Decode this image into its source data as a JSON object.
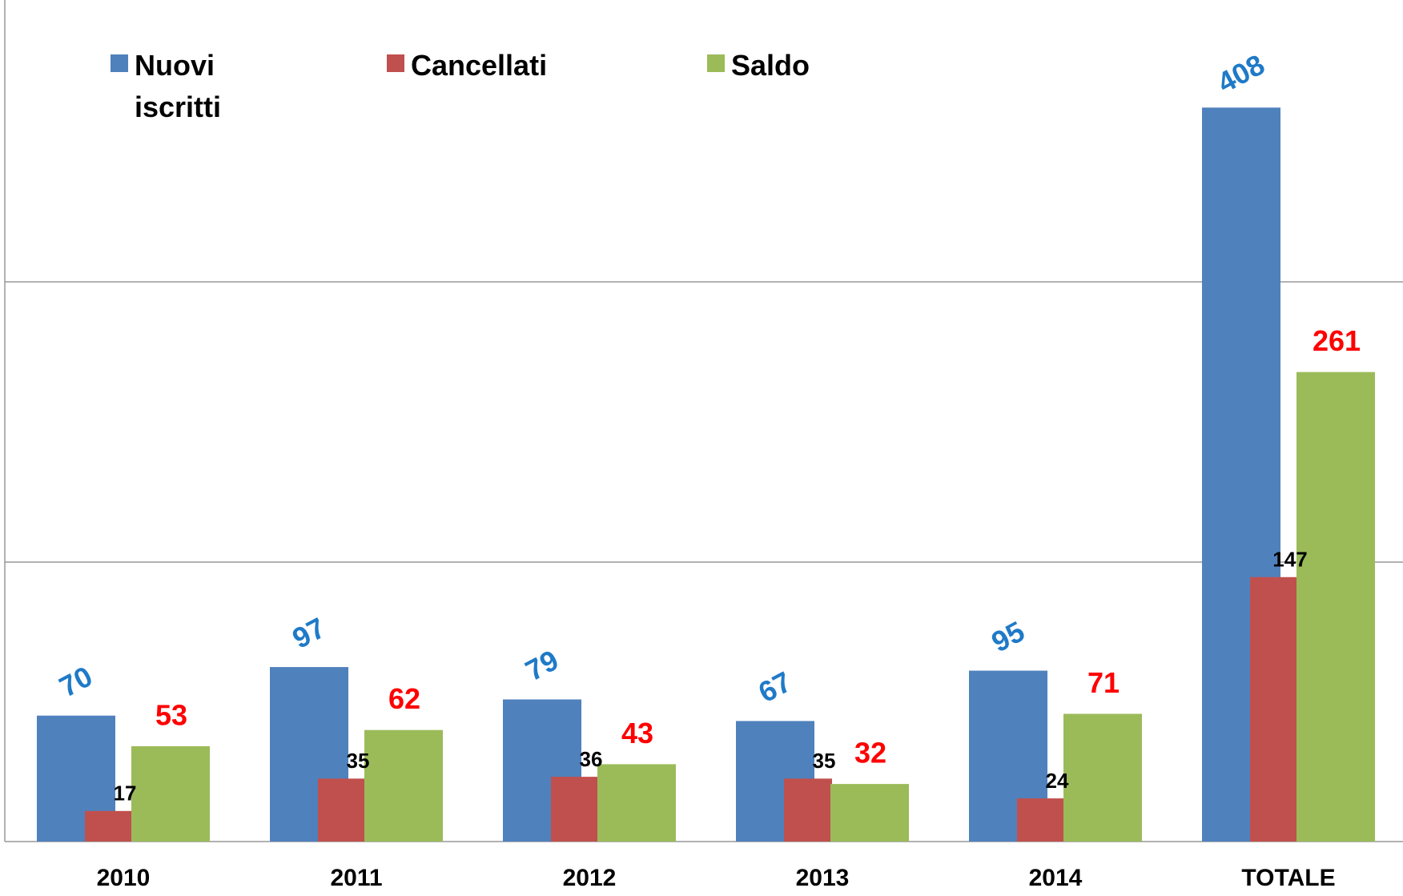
{
  "chart_data": {
    "type": "bar",
    "categories": [
      "2010",
      "2011",
      "2012",
      "2013",
      "2014",
      "TOTALE"
    ],
    "series": [
      {
        "name": "Nuovi iscritti",
        "color": "#4f81bd",
        "label_color": "#1f7ac8",
        "values": [
          70,
          97,
          79,
          67,
          95,
          408
        ]
      },
      {
        "name": "Cancellati",
        "color": "#c0504d",
        "label_color": "#000000",
        "values": [
          17,
          35,
          36,
          35,
          24,
          147
        ]
      },
      {
        "name": "Saldo",
        "color": "#9bbb59",
        "label_color": "#ff0000",
        "values": [
          53,
          62,
          43,
          32,
          71,
          261
        ]
      }
    ],
    "ylim": [
      0,
      450
    ]
  }
}
